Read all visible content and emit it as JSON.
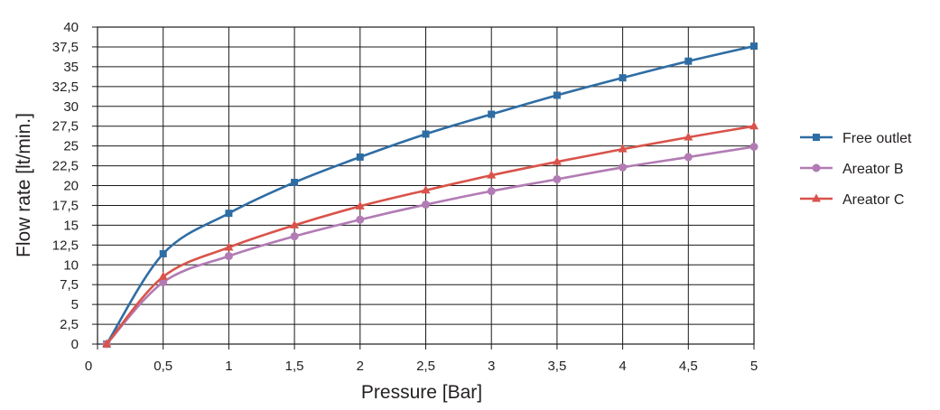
{
  "chart_data": {
    "type": "line",
    "title": "",
    "xlabel": "Pressure  [Bar]",
    "ylabel": "Flow rate [lt/min.]",
    "xlim": [
      0,
      5
    ],
    "ylim": [
      0,
      40
    ],
    "x_ticks": [
      "0",
      "0,5",
      "1",
      "1,5",
      "2",
      "2,5",
      "3",
      "3,5",
      "4",
      "4,5",
      "5"
    ],
    "y_ticks": [
      "0",
      "2,5",
      "5",
      "7,5",
      "10",
      "12,5",
      "15",
      "17,5",
      "20",
      "22,5",
      "25",
      "27,5",
      "30",
      "32,5",
      "35",
      "37,5",
      "40"
    ],
    "grid": true,
    "legend_position": "right",
    "series": [
      {
        "name": "Free outlet",
        "color": "#2e6da4",
        "marker": "square",
        "x": [
          0.07,
          0.5,
          1,
          1.5,
          2,
          2.5,
          3,
          3.5,
          4,
          4.5,
          5
        ],
        "values": [
          0,
          11.4,
          16.5,
          20.4,
          23.6,
          26.5,
          29,
          31.4,
          33.6,
          35.7,
          37.6
        ]
      },
      {
        "name": "Areator B",
        "color": "#b27bb4",
        "marker": "circle",
        "x": [
          0.07,
          0.5,
          1,
          1.5,
          2,
          2.5,
          3,
          3.5,
          4,
          4.5,
          5
        ],
        "values": [
          0,
          7.8,
          11.1,
          13.6,
          15.7,
          17.6,
          19.3,
          20.8,
          22.3,
          23.6,
          24.9
        ]
      },
      {
        "name": "Areator C",
        "color": "#d9534a",
        "marker": "triangle",
        "x": [
          0.07,
          0.5,
          1,
          1.5,
          2,
          2.5,
          3,
          3.5,
          4,
          4.5,
          5
        ],
        "values": [
          0,
          8.5,
          12.2,
          15,
          17.4,
          19.4,
          21.3,
          23,
          24.6,
          26.1,
          27.5
        ]
      }
    ]
  }
}
